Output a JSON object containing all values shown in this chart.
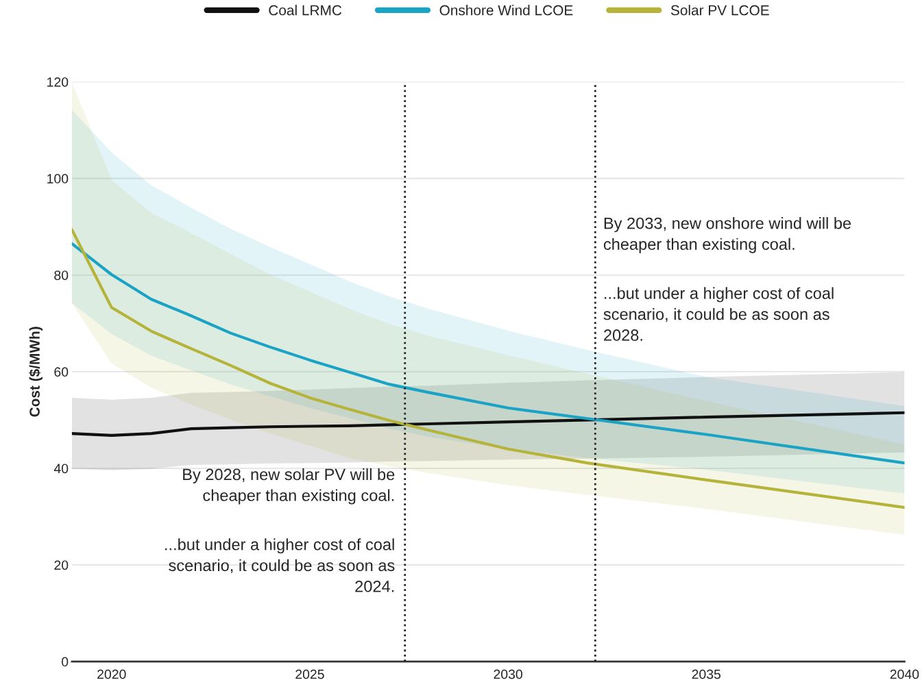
{
  "chart_data": {
    "type": "line",
    "ylabel": "Cost ($/MWh)",
    "x": [
      2019,
      2020,
      2021,
      2022,
      2023,
      2024,
      2025,
      2026,
      2027,
      2028,
      2030,
      2032,
      2035,
      2040
    ],
    "series": [
      {
        "name": "Coal LRMC",
        "color": "#111111",
        "values": [
          47.2,
          46.8,
          47.2,
          48.2,
          48.4,
          48.6,
          48.7,
          48.8,
          49.0,
          49.2,
          49.6,
          50.0,
          50.6,
          51.5
        ],
        "lower": [
          39.9,
          39.6,
          39.9,
          40.7,
          40.8,
          41.0,
          41.1,
          41.2,
          41.4,
          41.5,
          41.8,
          42.0,
          42.4,
          43.3
        ],
        "upper": [
          54.6,
          54.2,
          54.6,
          55.6,
          55.8,
          56.0,
          56.3,
          56.6,
          56.9,
          57.1,
          57.7,
          58.2,
          58.9,
          59.9
        ]
      },
      {
        "name": "Onshore Wind LCOE",
        "color": "#1ba3c6",
        "values": [
          86.5,
          80.1,
          75.0,
          71.6,
          68.0,
          65.1,
          62.4,
          59.9,
          57.4,
          55.7,
          52.5,
          50.3,
          47.0,
          41.1
        ],
        "lower": [
          74.2,
          67.8,
          63.3,
          60.3,
          57.4,
          54.9,
          52.5,
          50.4,
          48.2,
          46.5,
          44.0,
          42.1,
          39.7,
          34.8
        ],
        "upper": [
          114.2,
          105.4,
          98.6,
          94.0,
          89.6,
          85.8,
          82.3,
          78.7,
          75.6,
          73.0,
          68.5,
          64.5,
          58.9,
          52.9
        ]
      },
      {
        "name": "Solar PV LCOE",
        "color": "#b5b33a",
        "values": [
          89.4,
          73.3,
          68.4,
          64.8,
          61.3,
          57.6,
          54.6,
          52.2,
          49.9,
          47.9,
          44.0,
          41.1,
          37.6,
          31.9
        ],
        "lower": [
          74.2,
          61.7,
          56.7,
          53.2,
          50.1,
          47.2,
          44.7,
          42.1,
          40.4,
          39.0,
          36.5,
          34.5,
          31.6,
          26.2
        ],
        "upper": [
          119.9,
          99.7,
          92.9,
          88.7,
          84.4,
          80.1,
          76.6,
          73.0,
          69.9,
          67.4,
          63.4,
          59.6,
          53.9,
          45.0
        ]
      }
    ],
    "xlim": [
      2019,
      2040
    ],
    "ylim": [
      0,
      120
    ],
    "xticks": [
      2020,
      2025,
      2030,
      2035,
      2040
    ],
    "yticks": [
      0,
      20,
      40,
      60,
      80,
      100,
      120
    ],
    "grid": "y",
    "legend": "top",
    "line_style": "solid",
    "ref_lines": [
      {
        "axis": "x",
        "value": 2027.4,
        "color": "#222222",
        "line_style": "dotted"
      },
      {
        "axis": "x",
        "value": 2032.2,
        "color": "#222222",
        "line_style": "dotted"
      }
    ],
    "annotations": [
      "By 2028, new solar PV will be\ncheaper than existing coal.",
      "...but under a higher cost of coal\nscenario, it could be as soon as\n2024.",
      "By 2033, new onshore wind will be\ncheaper than existing coal.",
      "...but under a higher cost of coal\nscenario, it could be as soon as\n2028."
    ]
  }
}
